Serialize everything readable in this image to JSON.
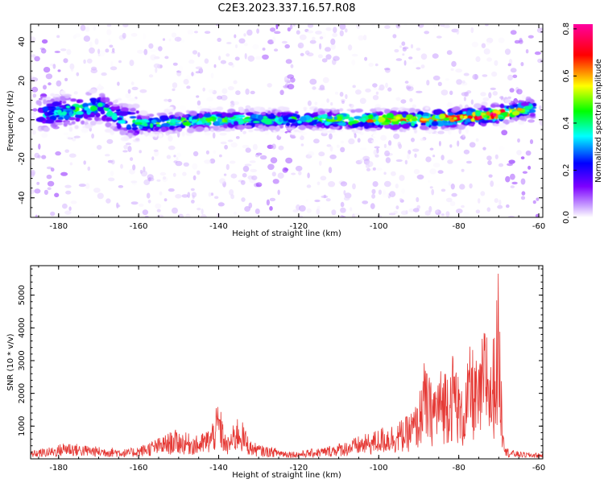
{
  "title": "C2E3.2023.337.16.57.R08",
  "colors": {
    "snr_line": "#e53935",
    "colormap": [
      "#ffffff",
      "#7d00ff",
      "#0000ff",
      "#00ffff",
      "#00ff00",
      "#ffff00",
      "#ff0000",
      "#ff00a0"
    ]
  },
  "chart_data": [
    {
      "type": "heatmap",
      "xlabel": "Height of straight line (km)",
      "ylabel": "Frequency (Hz)",
      "xlim": [
        -187,
        -59
      ],
      "ylim": [
        -50,
        49
      ],
      "x_ticks": [
        -180,
        -160,
        -140,
        -120,
        -100,
        -80,
        -60
      ],
      "y_ticks": [
        -40,
        -20,
        0,
        20,
        40
      ],
      "grid": false,
      "colorbar": {
        "label": "Normalized spectral amplitude",
        "range": [
          0,
          0.82
        ],
        "ticks": [
          0.0,
          0.2,
          0.4,
          0.6,
          0.8
        ]
      },
      "ridge": {
        "x": [
          -185,
          -180,
          -175,
          -170,
          -165,
          -160,
          -150,
          -140,
          -130,
          -120,
          -110,
          -100,
          -90,
          -80,
          -70,
          -65,
          -60
        ],
        "freq_center": [
          2,
          4,
          5,
          7,
          1,
          -2,
          -1,
          0,
          0,
          0,
          0,
          0,
          0,
          1,
          3,
          5,
          6
        ],
        "peak_amplitude": [
          0.3,
          0.4,
          0.45,
          0.4,
          0.35,
          0.45,
          0.5,
          0.5,
          0.45,
          0.45,
          0.55,
          0.7,
          0.7,
          0.75,
          0.8,
          0.6,
          0.4
        ]
      }
    },
    {
      "type": "line",
      "xlabel": "Height of straight line (km)",
      "ylabel": "SNR (10 * v/v)",
      "xlim": [
        -187,
        -59
      ],
      "ylim": [
        0,
        5900
      ],
      "x_ticks": [
        -180,
        -160,
        -140,
        -120,
        -100,
        -80,
        -60
      ],
      "y_ticks": [
        1000,
        2000,
        3000,
        4000,
        5000
      ],
      "grid": false,
      "series": [
        {
          "x": [
            -187,
            -184,
            -181,
            -178,
            -175,
            -172,
            -169,
            -166,
            -163,
            -160,
            -157,
            -154,
            -151,
            -148,
            -145,
            -142,
            -140,
            -138,
            -135,
            -132,
            -129,
            -126,
            -123,
            -120,
            -117,
            -114,
            -111,
            -108,
            -105,
            -102,
            -99,
            -96,
            -93,
            -90,
            -89,
            -87,
            -85,
            -83,
            -81,
            -80,
            -79,
            -77,
            -75,
            -74,
            -73,
            -72,
            -71,
            -70,
            -69.5,
            -69,
            -68,
            -66,
            -63,
            -60
          ],
          "y": [
            250,
            320,
            380,
            550,
            450,
            400,
            360,
            350,
            300,
            380,
            550,
            700,
            900,
            800,
            700,
            1000,
            1800,
            600,
            1400,
            550,
            400,
            350,
            250,
            230,
            300,
            350,
            450,
            550,
            700,
            800,
            1000,
            1100,
            1300,
            1800,
            3100,
            2400,
            2700,
            3000,
            3400,
            2500,
            2000,
            3600,
            2800,
            3900,
            4500,
            3000,
            4300,
            5900,
            3200,
            1500,
            350,
            250,
            200,
            180
          ]
        }
      ]
    }
  ]
}
